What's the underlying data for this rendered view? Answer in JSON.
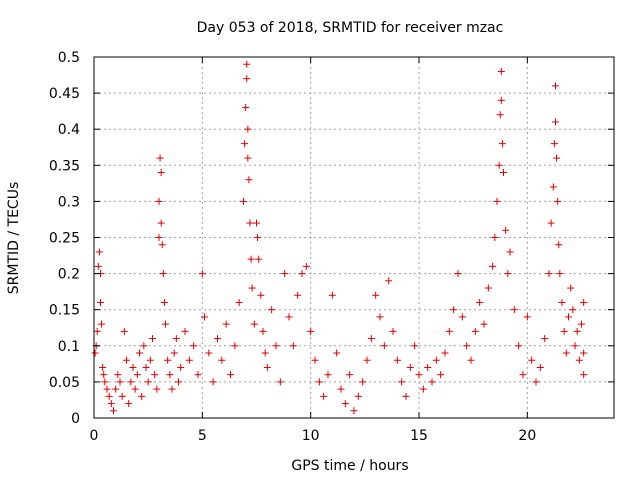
{
  "chart_data": {
    "type": "scatter",
    "title": "Day 053 of 2018, SRMTID for receiver mzac",
    "xlabel": "GPS time / hours",
    "ylabel": "SRMTID / TECUs",
    "xlim": [
      0,
      24
    ],
    "ylim": [
      0,
      0.5
    ],
    "xticks": [
      0,
      5,
      10,
      15,
      20
    ],
    "yticks": [
      0,
      0.05,
      0.1,
      0.15,
      0.2,
      0.25,
      0.3,
      0.35,
      0.4,
      0.45,
      0.5
    ],
    "xtick_labels": [
      "0",
      "5",
      "10",
      "15",
      "20"
    ],
    "ytick_labels": [
      "0",
      "0.05",
      "0.1",
      "0.15",
      "0.2",
      "0.25",
      "0.3",
      "0.35",
      "0.4",
      "0.45",
      "0.5"
    ],
    "grid": true,
    "marker": "+",
    "color": "#e00000",
    "series": [
      {
        "name": "SRMTID",
        "points": [
          [
            0.05,
            0.09
          ],
          [
            0.1,
            0.1
          ],
          [
            0.15,
            0.12
          ],
          [
            0.2,
            0.21
          ],
          [
            0.25,
            0.23
          ],
          [
            0.3,
            0.2
          ],
          [
            0.3,
            0.16
          ],
          [
            0.35,
            0.13
          ],
          [
            0.4,
            0.07
          ],
          [
            0.45,
            0.06
          ],
          [
            0.5,
            0.05
          ],
          [
            0.6,
            0.04
          ],
          [
            0.7,
            0.03
          ],
          [
            0.8,
            0.02
          ],
          [
            0.9,
            0.01
          ],
          [
            1.0,
            0.04
          ],
          [
            1.1,
            0.06
          ],
          [
            1.2,
            0.05
          ],
          [
            1.3,
            0.03
          ],
          [
            1.4,
            0.12
          ],
          [
            1.5,
            0.08
          ],
          [
            1.6,
            0.02
          ],
          [
            1.7,
            0.05
          ],
          [
            1.8,
            0.07
          ],
          [
            1.9,
            0.04
          ],
          [
            2.0,
            0.06
          ],
          [
            2.1,
            0.09
          ],
          [
            2.2,
            0.03
          ],
          [
            2.3,
            0.1
          ],
          [
            2.4,
            0.07
          ],
          [
            2.5,
            0.05
          ],
          [
            2.6,
            0.08
          ],
          [
            2.7,
            0.11
          ],
          [
            2.8,
            0.06
          ],
          [
            2.9,
            0.04
          ],
          [
            3.0,
            0.25
          ],
          [
            3.0,
            0.3
          ],
          [
            3.05,
            0.36
          ],
          [
            3.1,
            0.34
          ],
          [
            3.1,
            0.27
          ],
          [
            3.15,
            0.24
          ],
          [
            3.2,
            0.2
          ],
          [
            3.25,
            0.16
          ],
          [
            3.3,
            0.13
          ],
          [
            3.4,
            0.08
          ],
          [
            3.5,
            0.06
          ],
          [
            3.6,
            0.04
          ],
          [
            3.7,
            0.09
          ],
          [
            3.8,
            0.11
          ],
          [
            3.9,
            0.05
          ],
          [
            4.0,
            0.07
          ],
          [
            4.2,
            0.12
          ],
          [
            4.4,
            0.08
          ],
          [
            4.6,
            0.1
          ],
          [
            4.8,
            0.06
          ],
          [
            5.0,
            0.2
          ],
          [
            5.1,
            0.14
          ],
          [
            5.3,
            0.09
          ],
          [
            5.5,
            0.05
          ],
          [
            5.7,
            0.11
          ],
          [
            5.9,
            0.08
          ],
          [
            6.1,
            0.13
          ],
          [
            6.3,
            0.06
          ],
          [
            6.5,
            0.1
          ],
          [
            6.7,
            0.16
          ],
          [
            6.9,
            0.3
          ],
          [
            6.95,
            0.38
          ],
          [
            7.0,
            0.43
          ],
          [
            7.05,
            0.49
          ],
          [
            7.05,
            0.47
          ],
          [
            7.1,
            0.4
          ],
          [
            7.1,
            0.36
          ],
          [
            7.15,
            0.33
          ],
          [
            7.2,
            0.27
          ],
          [
            7.25,
            0.22
          ],
          [
            7.3,
            0.18
          ],
          [
            7.4,
            0.13
          ],
          [
            7.5,
            0.27
          ],
          [
            7.55,
            0.25
          ],
          [
            7.6,
            0.22
          ],
          [
            7.7,
            0.17
          ],
          [
            7.8,
            0.12
          ],
          [
            7.9,
            0.09
          ],
          [
            8.0,
            0.07
          ],
          [
            8.2,
            0.15
          ],
          [
            8.4,
            0.1
          ],
          [
            8.6,
            0.05
          ],
          [
            8.8,
            0.2
          ],
          [
            9.0,
            0.14
          ],
          [
            9.2,
            0.1
          ],
          [
            9.4,
            0.17
          ],
          [
            9.6,
            0.2
          ],
          [
            9.8,
            0.21
          ],
          [
            10.0,
            0.12
          ],
          [
            10.2,
            0.08
          ],
          [
            10.4,
            0.05
          ],
          [
            10.6,
            0.03
          ],
          [
            10.8,
            0.06
          ],
          [
            11.0,
            0.17
          ],
          [
            11.2,
            0.09
          ],
          [
            11.4,
            0.04
          ],
          [
            11.6,
            0.02
          ],
          [
            11.8,
            0.06
          ],
          [
            12.0,
            0.01
          ],
          [
            12.2,
            0.03
          ],
          [
            12.4,
            0.05
          ],
          [
            12.6,
            0.08
          ],
          [
            12.8,
            0.11
          ],
          [
            13.0,
            0.17
          ],
          [
            13.2,
            0.14
          ],
          [
            13.4,
            0.1
          ],
          [
            13.6,
            0.19
          ],
          [
            13.8,
            0.12
          ],
          [
            14.0,
            0.08
          ],
          [
            14.2,
            0.05
          ],
          [
            14.4,
            0.03
          ],
          [
            14.6,
            0.07
          ],
          [
            14.8,
            0.1
          ],
          [
            15.0,
            0.06
          ],
          [
            15.2,
            0.04
          ],
          [
            15.4,
            0.07
          ],
          [
            15.6,
            0.05
          ],
          [
            15.8,
            0.08
          ],
          [
            16.0,
            0.06
          ],
          [
            16.2,
            0.09
          ],
          [
            16.4,
            0.12
          ],
          [
            16.6,
            0.15
          ],
          [
            16.8,
            0.2
          ],
          [
            17.0,
            0.14
          ],
          [
            17.2,
            0.1
          ],
          [
            17.4,
            0.08
          ],
          [
            17.6,
            0.12
          ],
          [
            17.8,
            0.16
          ],
          [
            18.0,
            0.13
          ],
          [
            18.2,
            0.18
          ],
          [
            18.4,
            0.21
          ],
          [
            18.5,
            0.25
          ],
          [
            18.6,
            0.3
          ],
          [
            18.7,
            0.35
          ],
          [
            18.75,
            0.42
          ],
          [
            18.8,
            0.48
          ],
          [
            18.8,
            0.44
          ],
          [
            18.85,
            0.38
          ],
          [
            18.9,
            0.34
          ],
          [
            19.0,
            0.26
          ],
          [
            19.1,
            0.2
          ],
          [
            19.2,
            0.23
          ],
          [
            19.4,
            0.15
          ],
          [
            19.6,
            0.1
          ],
          [
            19.8,
            0.06
          ],
          [
            20.0,
            0.14
          ],
          [
            20.2,
            0.08
          ],
          [
            20.4,
            0.05
          ],
          [
            20.6,
            0.07
          ],
          [
            20.8,
            0.11
          ],
          [
            21.0,
            0.2
          ],
          [
            21.1,
            0.27
          ],
          [
            21.2,
            0.32
          ],
          [
            21.25,
            0.38
          ],
          [
            21.3,
            0.41
          ],
          [
            21.3,
            0.46
          ],
          [
            21.35,
            0.36
          ],
          [
            21.4,
            0.3
          ],
          [
            21.45,
            0.24
          ],
          [
            21.5,
            0.2
          ],
          [
            21.6,
            0.16
          ],
          [
            21.7,
            0.12
          ],
          [
            21.8,
            0.09
          ],
          [
            21.9,
            0.14
          ],
          [
            22.0,
            0.18
          ],
          [
            22.1,
            0.15
          ],
          [
            22.2,
            0.1
          ],
          [
            22.3,
            0.12
          ],
          [
            22.4,
            0.08
          ],
          [
            22.5,
            0.13
          ],
          [
            22.6,
            0.16
          ],
          [
            22.6,
            0.09
          ],
          [
            22.6,
            0.06
          ]
        ]
      }
    ]
  }
}
